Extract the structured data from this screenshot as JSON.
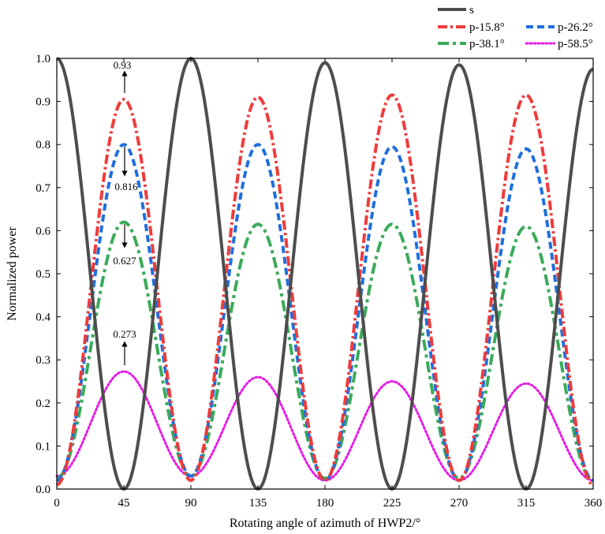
{
  "chart_data": {
    "type": "line",
    "title": "",
    "xlabel": "Rotating angle of azimuth of HWP2/°",
    "ylabel": "Normalized power",
    "xlim": [
      0,
      360
    ],
    "ylim": [
      0,
      1.0
    ],
    "xticks": [
      0,
      45,
      90,
      135,
      180,
      225,
      270,
      315,
      360
    ],
    "yticks": [
      0.0,
      0.1,
      0.2,
      0.3,
      0.4,
      0.5,
      0.6,
      0.7,
      0.8,
      0.9,
      1.0
    ],
    "ytick_labels": [
      "0.0",
      "0.1",
      "0.2",
      "0.3",
      "0.4",
      "0.5",
      "0.6",
      "0.7",
      "0.8",
      "0.9",
      "1.0"
    ],
    "grid": false,
    "legend_position": "top-right",
    "series": [
      {
        "name": "s",
        "color": "#4d4d4d",
        "style": "solid",
        "peak_x": [
          0,
          90,
          180,
          270,
          360
        ],
        "peak_y": [
          1.0,
          1.0,
          0.99,
          0.985,
          0.975
        ],
        "trough_x": [
          45,
          135,
          225,
          315
        ],
        "trough_y": [
          0.0,
          0.0,
          0.0,
          0.0
        ]
      },
      {
        "name": "p-15.8°",
        "color": "#ef3b3b",
        "style": "dashdot",
        "peak_x": [
          45,
          135,
          225,
          315
        ],
        "peak_y": [
          0.905,
          0.91,
          0.915,
          0.915
        ],
        "trough_x": [
          0,
          90,
          180,
          270,
          360
        ],
        "trough_y": [
          0.01,
          0.02,
          0.02,
          0.02,
          0.01
        ]
      },
      {
        "name": "p-26.2°",
        "color": "#1f6fdd",
        "style": "dashed",
        "peak_x": [
          45,
          135,
          225,
          315
        ],
        "peak_y": [
          0.8,
          0.8,
          0.795,
          0.79
        ],
        "trough_x": [
          0,
          90,
          180,
          270,
          360
        ],
        "trough_y": [
          0.02,
          0.03,
          0.02,
          0.02,
          0.02
        ]
      },
      {
        "name": "p-38.1°",
        "color": "#3aaa5a",
        "style": "dashdot-long",
        "peak_x": [
          45,
          135,
          225,
          315
        ],
        "peak_y": [
          0.62,
          0.615,
          0.615,
          0.61
        ],
        "trough_x": [
          0,
          90,
          180,
          270,
          360
        ],
        "trough_y": [
          0.025,
          0.03,
          0.025,
          0.025,
          0.02
        ]
      },
      {
        "name": "p-58.5°",
        "color": "#e619e6",
        "style": "dotted",
        "peak_x": [
          45,
          135,
          225,
          315
        ],
        "peak_y": [
          0.273,
          0.26,
          0.25,
          0.245
        ],
        "trough_x": [
          0,
          90,
          180,
          270,
          360
        ],
        "trough_y": [
          0.03,
          0.03,
          0.02,
          0.02,
          0.02
        ]
      }
    ],
    "annotations": [
      {
        "text": "0.93",
        "x": 45,
        "y": 0.93,
        "arrow": "up"
      },
      {
        "text": "0.816",
        "x": 45,
        "y": 0.816,
        "arrow": "down"
      },
      {
        "text": "0.627",
        "x": 45,
        "y": 0.627,
        "arrow": "down"
      },
      {
        "text": "0.273",
        "x": 45,
        "y": 0.273,
        "arrow": "up"
      }
    ]
  }
}
